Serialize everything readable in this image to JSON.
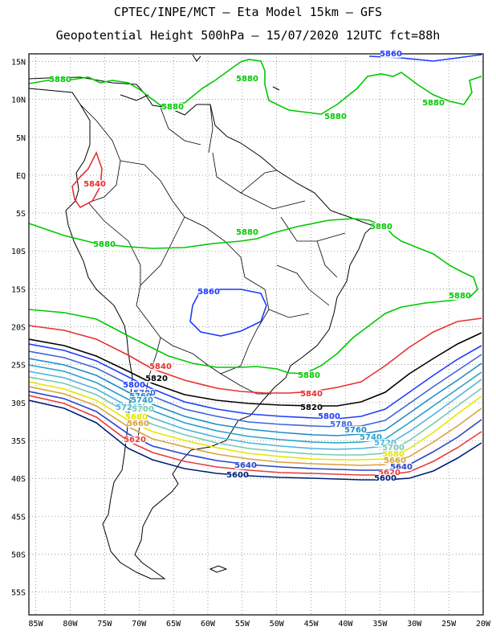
{
  "title": {
    "line1": "CPTEC/INPE/MCT –  Eta Model 15km – GFS",
    "line2": "Geopotential Height 500hPa – 15/07/2020 12UTC fct=88h"
  },
  "map": {
    "lon_range": [
      -86,
      -20
    ],
    "lat_range": [
      -58,
      16
    ],
    "lat_ticks": [
      "15N",
      "10N",
      "5N",
      "EQ",
      "5S",
      "10S",
      "15S",
      "20S",
      "25S",
      "30S",
      "35S",
      "40S",
      "45S",
      "50S",
      "55S"
    ],
    "lon_ticks": [
      "85W",
      "80W",
      "75W",
      "70W",
      "65W",
      "60W",
      "55W",
      "50W",
      "45W",
      "40W",
      "35W",
      "30W",
      "25W",
      "20W"
    ],
    "grid": true
  },
  "contours": [
    {
      "value": 5880,
      "color": "#00c800",
      "labels": [
        "5880",
        "5880",
        "5880",
        "5880",
        "5880",
        "5880",
        "5880",
        "5880",
        "5880",
        "5880"
      ]
    },
    {
      "value": 5840,
      "color": "#e83030",
      "labels": [
        "5840",
        "5840",
        "5840"
      ]
    },
    {
      "value": 5860,
      "color": "#1e3cff",
      "labels": [
        "5860",
        "5860"
      ]
    },
    {
      "value": 5820,
      "color": "#000000",
      "labels": [
        "5820",
        "5820"
      ]
    },
    {
      "value": 5800,
      "color": "#1e3cff",
      "labels": [
        "5800",
        "5800"
      ]
    },
    {
      "value": 5780,
      "color": "#3c64dc",
      "labels": [
        "5780",
        "5780"
      ]
    },
    {
      "value": 5760,
      "color": "#1e8cc8",
      "labels": [
        "5760",
        "5760"
      ]
    },
    {
      "value": 5740,
      "color": "#28a0c8",
      "labels": [
        "5740",
        "5740"
      ]
    },
    {
      "value": 5720,
      "color": "#4cb4dc",
      "labels": [
        "5720",
        "5720"
      ]
    },
    {
      "value": 5700,
      "color": "#78c8b4",
      "labels": [
        "5700",
        "5700"
      ]
    },
    {
      "value": 5680,
      "color": "#e6e600",
      "labels": [
        "5680",
        "5680"
      ]
    },
    {
      "value": 5660,
      "color": "#dca03c",
      "labels": [
        "5660",
        "5660"
      ]
    },
    {
      "value": 5640,
      "color": "#2846c8",
      "labels": [
        "5640",
        "5640"
      ]
    },
    {
      "value": 5620,
      "color": "#e83c3c",
      "labels": [
        "5620",
        "5620"
      ]
    },
    {
      "value": 5600,
      "color": "#001e78",
      "labels": [
        "5600",
        "5600"
      ]
    }
  ]
}
